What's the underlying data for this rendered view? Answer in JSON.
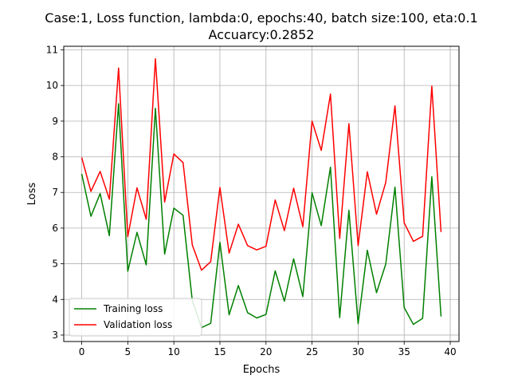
{
  "chart_data": {
    "type": "line",
    "title": "Case:1, Loss function, lambda:0, epochs:40, batch size:100, eta:0.1",
    "subtitle": "Accuarcy:0.2852",
    "xlabel": "Epochs",
    "ylabel": "Loss",
    "xlim": [
      -1.95,
      40.95
    ],
    "ylim": [
      2.82,
      11.1
    ],
    "xticks": [
      0,
      5,
      10,
      15,
      20,
      25,
      30,
      35,
      40
    ],
    "yticks": [
      3,
      4,
      5,
      6,
      7,
      8,
      9,
      10,
      11
    ],
    "grid": true,
    "legend": "lower-left",
    "x": [
      0,
      1,
      2,
      3,
      4,
      5,
      6,
      7,
      8,
      9,
      10,
      11,
      12,
      13,
      14,
      15,
      16,
      17,
      18,
      19,
      20,
      21,
      22,
      23,
      24,
      25,
      26,
      27,
      28,
      29,
      30,
      31,
      32,
      33,
      34,
      35,
      36,
      37,
      38,
      39
    ],
    "series": [
      {
        "name": "Training loss",
        "color": "#008000",
        "values": [
          7.52,
          6.33,
          6.97,
          5.79,
          9.49,
          4.79,
          5.88,
          4.97,
          9.36,
          5.27,
          6.56,
          6.36,
          3.97,
          3.21,
          3.33,
          5.6,
          3.57,
          4.39,
          3.63,
          3.48,
          3.58,
          4.8,
          3.95,
          5.14,
          4.08,
          6.99,
          6.07,
          7.71,
          3.49,
          6.5,
          3.32,
          5.38,
          4.19,
          4.99,
          7.15,
          3.77,
          3.3,
          3.47,
          7.44,
          3.52
        ]
      },
      {
        "name": "Validation loss",
        "color": "#ff0000",
        "values": [
          7.98,
          7.03,
          7.59,
          6.81,
          10.49,
          5.76,
          7.13,
          6.25,
          10.75,
          6.73,
          8.08,
          7.84,
          5.53,
          4.82,
          5.06,
          7.14,
          5.3,
          6.11,
          5.51,
          5.39,
          5.49,
          6.79,
          5.93,
          7.12,
          6.04,
          9.0,
          8.18,
          9.76,
          5.71,
          8.93,
          5.51,
          7.58,
          6.39,
          7.28,
          9.43,
          6.15,
          5.63,
          5.77,
          9.98,
          5.89
        ]
      }
    ]
  }
}
